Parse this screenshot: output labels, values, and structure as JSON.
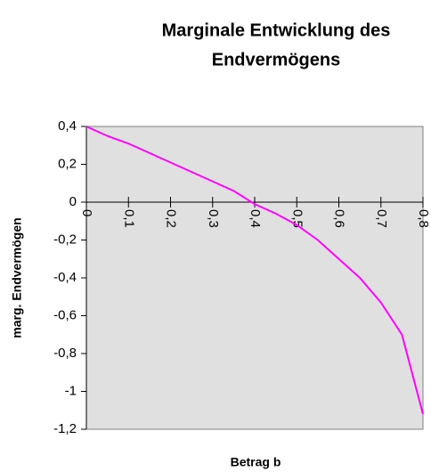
{
  "chart_data": {
    "type": "line",
    "title": [
      "Marginale Entwicklung des",
      "Endvermögens"
    ],
    "x_label": "Betrag b",
    "y_label": "marg. Endvermögen",
    "x": [
      0,
      0.05,
      0.1,
      0.15,
      0.2,
      0.25,
      0.3,
      0.35,
      0.4,
      0.45,
      0.5,
      0.55,
      0.6,
      0.65,
      0.7,
      0.75,
      0.8
    ],
    "series": [
      {
        "name": "marg. Endvermögen",
        "color": "#ff00ff",
        "values": [
          0.4,
          0.35,
          0.31,
          0.26,
          0.21,
          0.16,
          0.11,
          0.06,
          -0.01,
          -0.06,
          -0.12,
          -0.2,
          -0.3,
          -0.4,
          -0.53,
          -0.7,
          -1.12
        ]
      }
    ],
    "xlim": [
      0,
      0.8
    ],
    "ylim": [
      -1.2,
      0.4
    ],
    "xticks": [
      0,
      {
        "value": 0.1,
        "label": "0,1"
      },
      {
        "value": 0.2,
        "label": "0,2"
      },
      {
        "value": 0.3,
        "label": "0,3"
      },
      {
        "value": 0.4,
        "label": "0,4"
      },
      {
        "value": 0.5,
        "label": "0,5"
      },
      {
        "value": 0.6,
        "label": "0,6"
      },
      {
        "value": 0.7,
        "label": "0,7"
      },
      {
        "value": 0.8,
        "label": "0,8"
      }
    ],
    "yticks": [
      {
        "value": 0.4,
        "label": "0,4"
      },
      {
        "value": 0.2,
        "label": "0,2"
      },
      0,
      {
        "value": -0.2,
        "label": "-0,2"
      },
      {
        "value": -0.4,
        "label": "-0,4"
      },
      {
        "value": -0.6,
        "label": "-0,6"
      },
      {
        "value": -0.8,
        "label": "-0,8"
      },
      -1,
      {
        "value": -1.2,
        "label": "-1,2"
      }
    ],
    "grid": false,
    "plot_background": "#e0e0e0"
  }
}
